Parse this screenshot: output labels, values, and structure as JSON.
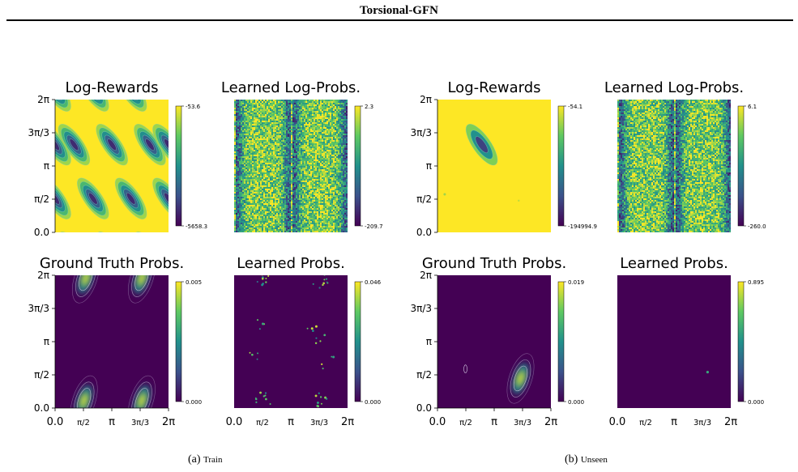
{
  "header": {
    "title": "Torsional-GFN"
  },
  "axis_ticks": {
    "y": [
      "0.0",
      "π/2",
      "π",
      "3π/3",
      "2π"
    ],
    "x": [
      "0.0",
      "π/2",
      "π",
      "3π/3",
      "2π"
    ]
  },
  "colormap": [
    "#440154",
    "#3b528b",
    "#21918c",
    "#5ec962",
    "#fde725"
  ],
  "captions": [
    {
      "label": "(a)",
      "name": "Train"
    },
    {
      "label": "(b)",
      "name": "Unseen"
    }
  ],
  "chart_data": [
    {
      "type": "heatmap",
      "group": "Train",
      "title": "Log-Rewards",
      "colorbar": {
        "max": "-53.6",
        "min": "-5658.3"
      },
      "pattern": "diagonal-ellipses",
      "contours": true,
      "xlim": [
        0,
        6.283
      ],
      "ylim": [
        0,
        6.283
      ]
    },
    {
      "type": "heatmap",
      "group": "Train",
      "title": "Learned Log-Probs.",
      "colorbar": {
        "max": "2.3",
        "min": "-209.7"
      },
      "pattern": "noisy-vertical-bands",
      "contours": false,
      "xlim": [
        0,
        6.283
      ],
      "ylim": [
        0,
        6.283
      ]
    },
    {
      "type": "heatmap",
      "group": "Train",
      "title": "Ground Truth Probs.",
      "colorbar": {
        "max": "0.005",
        "min": "0.000"
      },
      "pattern": "four-peaks",
      "contours": true,
      "xlim": [
        0,
        6.283
      ],
      "ylim": [
        0,
        6.283
      ]
    },
    {
      "type": "heatmap",
      "group": "Train",
      "title": "Learned Probs.",
      "colorbar": {
        "max": "0.046",
        "min": "0.000"
      },
      "pattern": "sparse-dots",
      "contours": false,
      "xlim": [
        0,
        6.283
      ],
      "ylim": [
        0,
        6.283
      ]
    },
    {
      "type": "heatmap",
      "group": "Unseen",
      "title": "Log-Rewards",
      "colorbar": {
        "max": "-54.1",
        "min": "-194994.9"
      },
      "pattern": "single-ellipse",
      "contours": true,
      "xlim": [
        0,
        6.283
      ],
      "ylim": [
        0,
        6.283
      ]
    },
    {
      "type": "heatmap",
      "group": "Unseen",
      "title": "Learned Log-Probs.",
      "colorbar": {
        "max": "6.1",
        "min": "-260.0"
      },
      "pattern": "noisy-vertical-bands",
      "contours": false,
      "xlim": [
        0,
        6.283
      ],
      "ylim": [
        0,
        6.283
      ]
    },
    {
      "type": "heatmap",
      "group": "Unseen",
      "title": "Ground Truth Probs.",
      "colorbar": {
        "max": "0.019",
        "min": "0.000"
      },
      "pattern": "single-peak",
      "contours": true,
      "xlim": [
        0,
        6.283
      ],
      "ylim": [
        0,
        6.283
      ]
    },
    {
      "type": "heatmap",
      "group": "Unseen",
      "title": "Learned Probs.",
      "colorbar": {
        "max": "0.895",
        "min": "0.000"
      },
      "pattern": "single-dot",
      "contours": false,
      "xlim": [
        0,
        6.283
      ],
      "ylim": [
        0,
        6.283
      ]
    }
  ]
}
